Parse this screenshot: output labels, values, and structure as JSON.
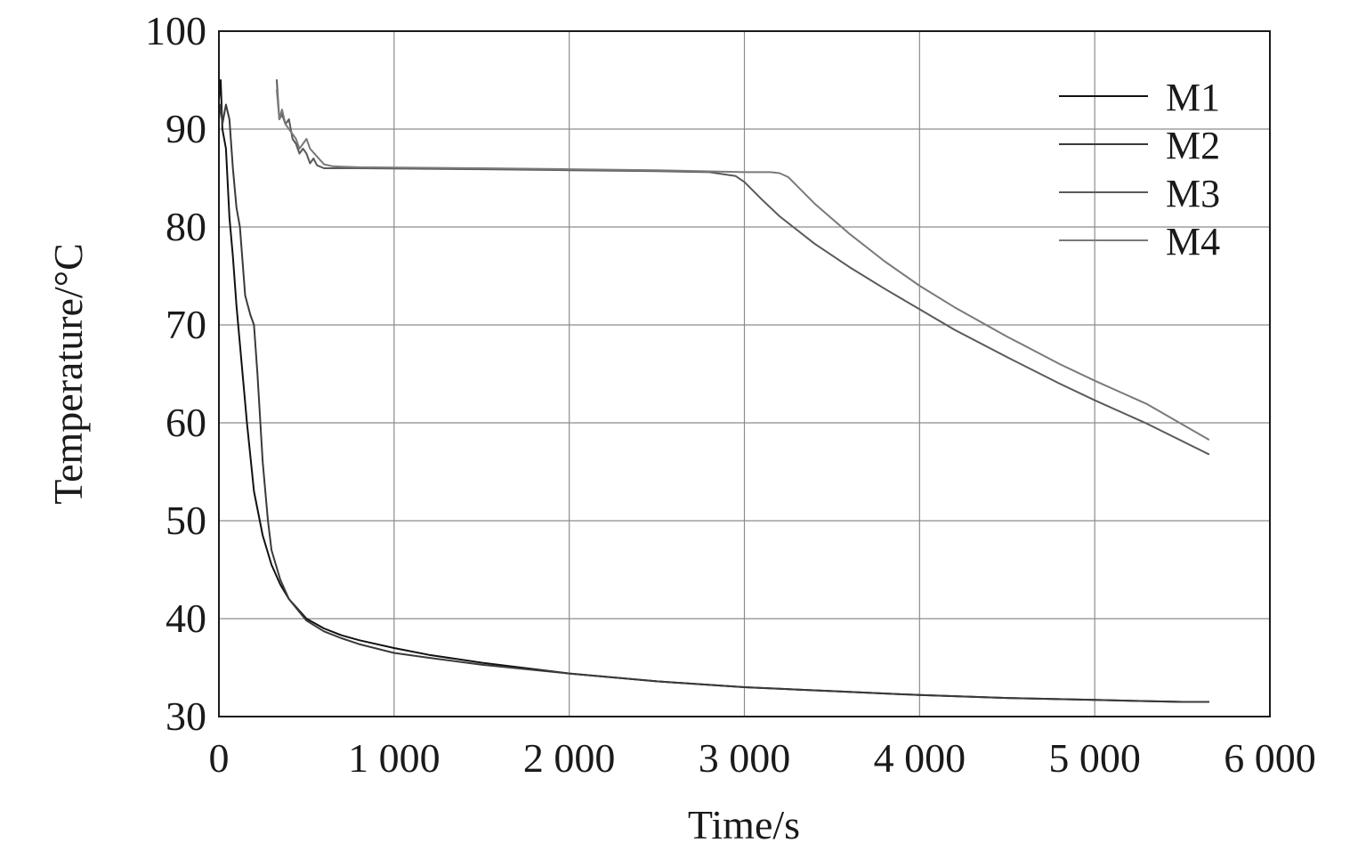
{
  "chart_data": {
    "type": "line",
    "title": "",
    "xlabel": "Time/s",
    "ylabel": "Temperature/°C",
    "xlim": [
      0,
      6000
    ],
    "ylim": [
      30,
      100
    ],
    "x_ticks": [
      0,
      1000,
      2000,
      3000,
      4000,
      5000,
      6000
    ],
    "x_tick_labels": [
      "0",
      "1 000",
      "2 000",
      "3 000",
      "4 000",
      "5 000",
      "6 000"
    ],
    "y_ticks": [
      30,
      40,
      50,
      60,
      70,
      80,
      90,
      100
    ],
    "y_tick_labels": [
      "30",
      "40",
      "50",
      "60",
      "70",
      "80",
      "90",
      "100"
    ],
    "grid": true,
    "legend_position": "top-right",
    "series": [
      {
        "name": "M1",
        "color": "#111111",
        "x": [
          0,
          10,
          20,
          40,
          60,
          80,
          100,
          130,
          160,
          200,
          250,
          300,
          350,
          400,
          500,
          600,
          700,
          800,
          1000,
          1200,
          1500,
          2000,
          2500,
          3000,
          3500,
          4000,
          4500,
          5000,
          5500,
          5650
        ],
        "y": [
          93,
          95,
          90,
          88,
          81,
          77,
          72,
          66,
          60,
          53,
          48.5,
          45.5,
          43.5,
          42,
          40,
          39,
          38.3,
          37.8,
          37,
          36.3,
          35.5,
          34.4,
          33.6,
          33,
          32.6,
          32.2,
          31.9,
          31.7,
          31.5,
          31.5
        ]
      },
      {
        "name": "M2",
        "color": "#3a3a3a",
        "x": [
          0,
          10,
          20,
          40,
          60,
          80,
          100,
          120,
          150,
          180,
          200,
          220,
          250,
          280,
          300,
          350,
          400,
          500,
          600,
          700,
          800,
          1000,
          1200,
          1500,
          2000,
          2500,
          3000,
          3500,
          4000,
          4500,
          5000,
          5500,
          5650
        ],
        "y": [
          91,
          92.5,
          90.5,
          92.5,
          91,
          86,
          82,
          80,
          73,
          71,
          70,
          65,
          56,
          50,
          47,
          44,
          42,
          39.8,
          38.7,
          38,
          37.4,
          36.5,
          36,
          35.3,
          34.4,
          33.6,
          33,
          32.6,
          32.2,
          31.9,
          31.7,
          31.5,
          31.5
        ]
      },
      {
        "name": "M3",
        "color": "#5a5a5a",
        "x": [
          330,
          345,
          360,
          380,
          400,
          420,
          440,
          460,
          480,
          500,
          520,
          540,
          560,
          600,
          800,
          1500,
          2000,
          2500,
          2800,
          2950,
          3000,
          3100,
          3200,
          3400,
          3600,
          3800,
          4000,
          4200,
          4500,
          4800,
          5000,
          5300,
          5650
        ],
        "y": [
          95,
          91,
          91.5,
          90.5,
          91,
          89,
          88.5,
          87.5,
          88,
          87.5,
          86.5,
          87,
          86.3,
          86,
          86,
          85.9,
          85.8,
          85.7,
          85.6,
          85.2,
          84.6,
          82.8,
          81.1,
          78.3,
          75.9,
          73.7,
          71.6,
          69.5,
          66.7,
          64,
          62.3,
          59.9,
          56.8
        ]
      },
      {
        "name": "M4",
        "color": "#7a7a7a",
        "x": [
          330,
          345,
          360,
          380,
          400,
          420,
          440,
          460,
          480,
          500,
          520,
          540,
          560,
          600,
          650,
          800,
          1500,
          2000,
          2500,
          3000,
          3150,
          3200,
          3250,
          3300,
          3400,
          3600,
          3800,
          4000,
          4200,
          4500,
          4800,
          5000,
          5300,
          5650
        ],
        "y": [
          94,
          91,
          92,
          90.5,
          90,
          89.5,
          89,
          88,
          88.5,
          89,
          88,
          87.6,
          87.2,
          86.4,
          86.2,
          86.1,
          86,
          85.9,
          85.8,
          85.6,
          85.6,
          85.5,
          85.1,
          84.2,
          82.4,
          79.3,
          76.5,
          74,
          71.8,
          68.8,
          66,
          64.3,
          61.9,
          58.3
        ]
      }
    ]
  }
}
